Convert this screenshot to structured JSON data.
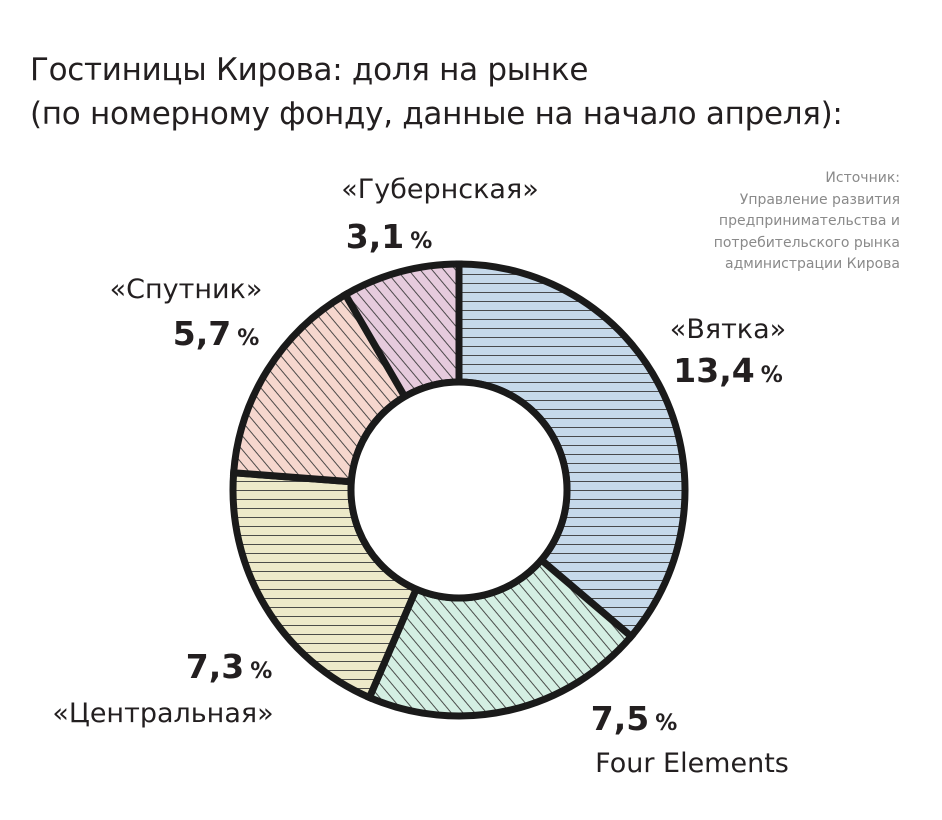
{
  "title_lines": [
    "Гостиницы Кирова: доля на рынке",
    "(по номерному фонду, данные на начало апреля):"
  ],
  "source_lines": [
    "Источник:",
    "Управление развития",
    "предпринимательства и",
    "потребительского рынка",
    "администрации Кирова"
  ],
  "chart_data": {
    "type": "pie",
    "donut": true,
    "unit": "%",
    "slices": [
      {
        "name": "«Вятка»",
        "value": 13.4,
        "label": "13,4",
        "color": "#c6d9ea",
        "hatch": "horizontal"
      },
      {
        "name": "Four Elements",
        "value": 7.5,
        "label": "7,5",
        "color": "#d4efe3",
        "hatch": "diagonal"
      },
      {
        "name": "«Центральная»",
        "value": 7.3,
        "label": "7,3",
        "color": "#ede9c9",
        "hatch": "horizontal"
      },
      {
        "name": "«Спутник»",
        "value": 5.7,
        "label": "5,7",
        "color": "#f6d7ce",
        "hatch": "diagonal"
      },
      {
        "name": "«Губернская»",
        "value": 3.1,
        "label": "3,1",
        "color": "#e6cbdd",
        "hatch": "diagonal"
      }
    ]
  }
}
